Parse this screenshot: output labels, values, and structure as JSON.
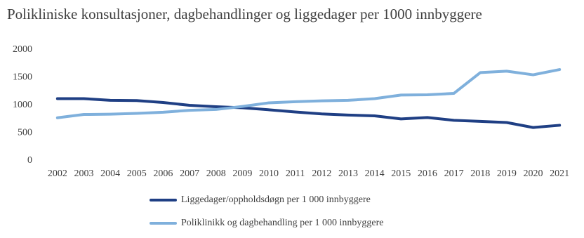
{
  "chart_data": {
    "type": "line",
    "title": "Polikliniske konsultasjoner, dagbehandlinger og liggedager per 1000 innbyggere",
    "categories": [
      "2002",
      "2003",
      "2004",
      "2005",
      "2006",
      "2007",
      "2008",
      "2009",
      "2010",
      "2011",
      "2012",
      "2013",
      "2014",
      "2015",
      "2016",
      "2017",
      "2018",
      "2019",
      "2020",
      "2021"
    ],
    "series": [
      {
        "name": "Liggedager/oppholdsdøgn per 1 000 innbyggere",
        "color": "#1f3f84",
        "values": [
          1120,
          1120,
          1090,
          1085,
          1050,
          1000,
          975,
          955,
          920,
          880,
          845,
          825,
          810,
          755,
          780,
          730,
          710,
          690,
          600,
          640
        ]
      },
      {
        "name": "Poliklinikk og dagbehandling per 1 000 innbyggere",
        "color": "#7fb0dc",
        "values": [
          775,
          835,
          840,
          855,
          875,
          910,
          925,
          980,
          1045,
          1065,
          1080,
          1090,
          1120,
          1185,
          1190,
          1215,
          1590,
          1615,
          1550,
          1645
        ]
      }
    ],
    "ylim": [
      0,
      2000
    ],
    "yticks": [
      0,
      500,
      1000,
      1500,
      2000
    ],
    "grid": false
  }
}
